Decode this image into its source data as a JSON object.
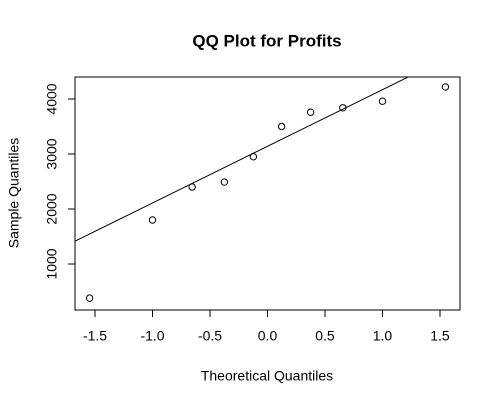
{
  "chart_data": {
    "type": "scatter",
    "title": "QQ Plot for Profits",
    "xlabel": "Theoretical Quantiles",
    "ylabel": "Sample Quantiles",
    "x": [
      -1.547,
      -1.0,
      -0.655,
      -0.375,
      -0.123,
      0.123,
      0.375,
      0.655,
      1.0,
      1.547
    ],
    "y": [
      380,
      1800,
      2400,
      2490,
      2950,
      3500,
      3760,
      3840,
      3960,
      4220
    ],
    "color": "#000000",
    "qqline": {
      "intercept": 3140,
      "slope": 1030
    },
    "xlim": [
      -1.674,
      1.674
    ],
    "ylim": [
      164,
      4400
    ],
    "xticks": [
      -1.5,
      {
        "value": -1,
        "label": "-1.0"
      },
      -0.5,
      {
        "value": 0,
        "label": "0.0"
      },
      0.5,
      {
        "value": 1,
        "label": "1.0"
      },
      1.5
    ],
    "yticks": [
      1000,
      2000,
      3000,
      4000
    ]
  }
}
